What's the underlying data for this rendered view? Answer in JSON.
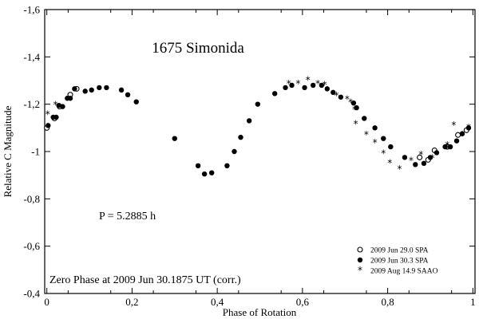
{
  "chart_data": {
    "type": "scatter",
    "title": "1675 Simonida",
    "xlabel": "Phase of Rotation",
    "ylabel": "Relative C Magnitude",
    "xlim": [
      -0.005,
      1.005
    ],
    "ylim": [
      -0.4,
      -1.6
    ],
    "y_axis_inverted": true,
    "x_ticks": [
      0,
      0.2,
      0.4,
      0.6,
      0.8,
      1
    ],
    "x_tick_labels": [
      "0",
      "0,2",
      "0,4",
      "0,6",
      "0,8",
      "1"
    ],
    "y_ticks": [
      -1.6,
      -1.4,
      -1.2,
      -1.0,
      -0.8,
      -0.6,
      -0.4
    ],
    "y_tick_labels": [
      "-1,6",
      "-1,4",
      "-1,2",
      "-1",
      "-0,8",
      "-0,6",
      "-0,4"
    ],
    "annotations": {
      "period": "P = 5.2885 h",
      "zero_phase": "Zero Phase at 2009 Jun 30.1875 UT (corr.)"
    },
    "legend_position": "bottom-right",
    "series": [
      {
        "name": "2009 Jun 29.0 SPA",
        "marker": "open-circle",
        "points": [
          [
            0.0,
            -1.1
          ],
          [
            0.018,
            -1.14
          ],
          [
            0.03,
            -1.19
          ],
          [
            0.055,
            -1.24
          ],
          [
            0.07,
            -1.265
          ],
          [
            0.875,
            -0.975
          ],
          [
            0.895,
            -0.965
          ],
          [
            0.91,
            -1.005
          ],
          [
            0.94,
            -1.02
          ],
          [
            0.965,
            -1.07
          ],
          [
            0.985,
            -1.09
          ]
        ]
      },
      {
        "name": "2009 Jun 30.3 SPA",
        "marker": "filled-circle",
        "points": [
          [
            0.003,
            -1.11
          ],
          [
            0.015,
            -1.145
          ],
          [
            0.022,
            -1.145
          ],
          [
            0.028,
            -1.195
          ],
          [
            0.037,
            -1.19
          ],
          [
            0.048,
            -1.225
          ],
          [
            0.055,
            -1.225
          ],
          [
            0.065,
            -1.265
          ],
          [
            0.09,
            -1.255
          ],
          [
            0.105,
            -1.26
          ],
          [
            0.123,
            -1.27
          ],
          [
            0.14,
            -1.27
          ],
          [
            0.175,
            -1.26
          ],
          [
            0.19,
            -1.24
          ],
          [
            0.21,
            -1.21
          ],
          [
            0.3,
            -1.055
          ],
          [
            0.355,
            -0.94
          ],
          [
            0.37,
            -0.905
          ],
          [
            0.387,
            -0.91
          ],
          [
            0.423,
            -0.94
          ],
          [
            0.44,
            -1.0
          ],
          [
            0.455,
            -1.06
          ],
          [
            0.475,
            -1.13
          ],
          [
            0.495,
            -1.2
          ],
          [
            0.535,
            -1.245
          ],
          [
            0.56,
            -1.27
          ],
          [
            0.575,
            -1.28
          ],
          [
            0.605,
            -1.27
          ],
          [
            0.625,
            -1.28
          ],
          [
            0.645,
            -1.28
          ],
          [
            0.658,
            -1.265
          ],
          [
            0.672,
            -1.25
          ],
          [
            0.69,
            -1.23
          ],
          [
            0.72,
            -1.205
          ],
          [
            0.727,
            -1.185
          ],
          [
            0.745,
            -1.14
          ],
          [
            0.77,
            -1.1
          ],
          [
            0.79,
            -1.055
          ],
          [
            0.807,
            -1.02
          ],
          [
            0.84,
            -0.975
          ],
          [
            0.865,
            -0.945
          ],
          [
            0.885,
            -0.95
          ],
          [
            0.9,
            -0.975
          ],
          [
            0.915,
            -0.995
          ],
          [
            0.935,
            -1.02
          ],
          [
            0.947,
            -1.02
          ],
          [
            0.962,
            -1.045
          ],
          [
            0.975,
            -1.075
          ],
          [
            0.99,
            -1.1
          ]
        ]
      },
      {
        "name": "2009 Aug 14.9 SAAO",
        "marker": "asterisk",
        "points": [
          [
            0.002,
            -1.16
          ],
          [
            0.02,
            -1.2
          ],
          [
            0.568,
            -1.29
          ],
          [
            0.59,
            -1.29
          ],
          [
            0.613,
            -1.305
          ],
          [
            0.636,
            -1.29
          ],
          [
            0.652,
            -1.285
          ],
          [
            0.68,
            -1.24
          ],
          [
            0.705,
            -1.225
          ],
          [
            0.713,
            -1.21
          ],
          [
            0.722,
            -1.18
          ],
          [
            0.725,
            -1.12
          ],
          [
            0.75,
            -1.075
          ],
          [
            0.77,
            -1.04
          ],
          [
            0.79,
            -0.995
          ],
          [
            0.805,
            -0.955
          ],
          [
            0.828,
            -0.93
          ],
          [
            0.855,
            -0.965
          ],
          [
            0.878,
            -0.99
          ],
          [
            0.905,
            -0.975
          ],
          [
            0.94,
            -1.03
          ],
          [
            0.955,
            -1.115
          ],
          [
            0.975,
            -1.075
          ],
          [
            0.99,
            -1.105
          ]
        ]
      }
    ]
  }
}
